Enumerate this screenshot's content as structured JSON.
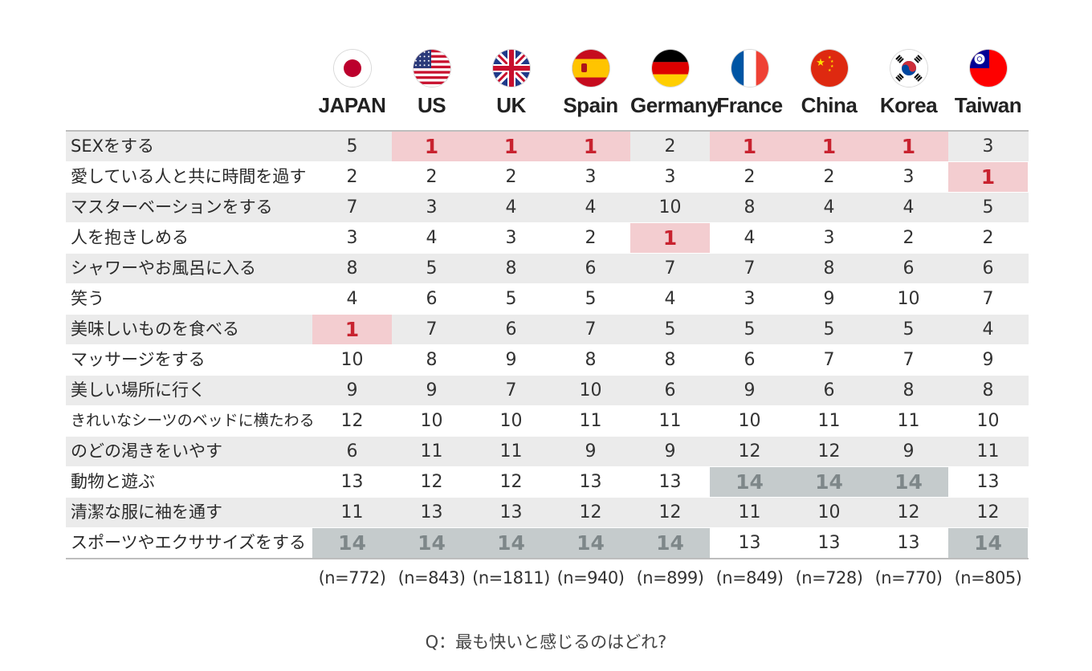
{
  "chart_data": {
    "type": "table",
    "columns": [
      "JAPAN",
      "US",
      "UK",
      "Spain",
      "Germany",
      "France",
      "China",
      "Korea",
      "Taiwan"
    ],
    "flags": [
      "flag-japan-icon",
      "flag-us-icon",
      "flag-uk-icon",
      "flag-spain-icon",
      "flag-germany-icon",
      "flag-france-icon",
      "flag-china-icon",
      "flag-korea-icon",
      "flag-taiwan-icon"
    ],
    "rows": [
      {
        "label": "SEXをする",
        "values": [
          "5",
          "1",
          "1",
          "1",
          "2",
          "1",
          "1",
          "1",
          "3"
        ]
      },
      {
        "label": "愛している人と共に時間を過す",
        "values": [
          "2",
          "2",
          "2",
          "3",
          "3",
          "2",
          "2",
          "3",
          "1"
        ]
      },
      {
        "label": "マスターベーションをする",
        "values": [
          "7",
          "3",
          "4",
          "4",
          "10",
          "8",
          "4",
          "4",
          "5"
        ]
      },
      {
        "label": "人を抱きしめる",
        "values": [
          "3",
          "4",
          "3",
          "2",
          "1",
          "4",
          "3",
          "2",
          "2"
        ]
      },
      {
        "label": "シャワーやお風呂に入る",
        "values": [
          "8",
          "5",
          "8",
          "6",
          "7",
          "7",
          "8",
          "6",
          "6"
        ]
      },
      {
        "label": "笑う",
        "values": [
          "4",
          "6",
          "5",
          "5",
          "4",
          "3",
          "9",
          "10",
          "7"
        ]
      },
      {
        "label": "美味しいものを食べる",
        "values": [
          "1",
          "7",
          "6",
          "7",
          "5",
          "5",
          "5",
          "5",
          "4"
        ]
      },
      {
        "label": "マッサージをする",
        "values": [
          "10",
          "8",
          "9",
          "8",
          "8",
          "6",
          "7",
          "7",
          "9"
        ]
      },
      {
        "label": "美しい場所に行く",
        "values": [
          "9",
          "9",
          "7",
          "10",
          "6",
          "9",
          "6",
          "8",
          "8"
        ]
      },
      {
        "label": "きれいなシーツのベッドに横たわる",
        "values": [
          "12",
          "10",
          "10",
          "11",
          "11",
          "10",
          "11",
          "11",
          "10"
        ]
      },
      {
        "label": "のどの渇きをいやす",
        "values": [
          "6",
          "11",
          "11",
          "9",
          "9",
          "12",
          "12",
          "9",
          "11"
        ]
      },
      {
        "label": "動物と遊ぶ",
        "values": [
          "13",
          "12",
          "12",
          "13",
          "13",
          "14",
          "14",
          "14",
          "13"
        ]
      },
      {
        "label": "清潔な服に袖を通す",
        "values": [
          "11",
          "13",
          "13",
          "12",
          "12",
          "11",
          "10",
          "12",
          "12"
        ]
      },
      {
        "label": "スポーツやエクササイズをする",
        "values": [
          "14",
          "14",
          "14",
          "14",
          "14",
          "13",
          "13",
          "13",
          "14"
        ]
      }
    ],
    "sample_sizes": [
      "(n=772)",
      "(n=843)",
      "(n=1811)",
      "(n=940)",
      "(n=899)",
      "(n=849)",
      "(n=728)",
      "(n=770)",
      "(n=805)"
    ],
    "highlight_colors": {
      "top": "#f3cdd0",
      "top_text": "#c8222f",
      "bottom": "#c5cbcc",
      "bottom_text": "#7e8789",
      "band": "#ebebeb"
    }
  },
  "question": "Q：最も快いと感じるのはどれ?"
}
